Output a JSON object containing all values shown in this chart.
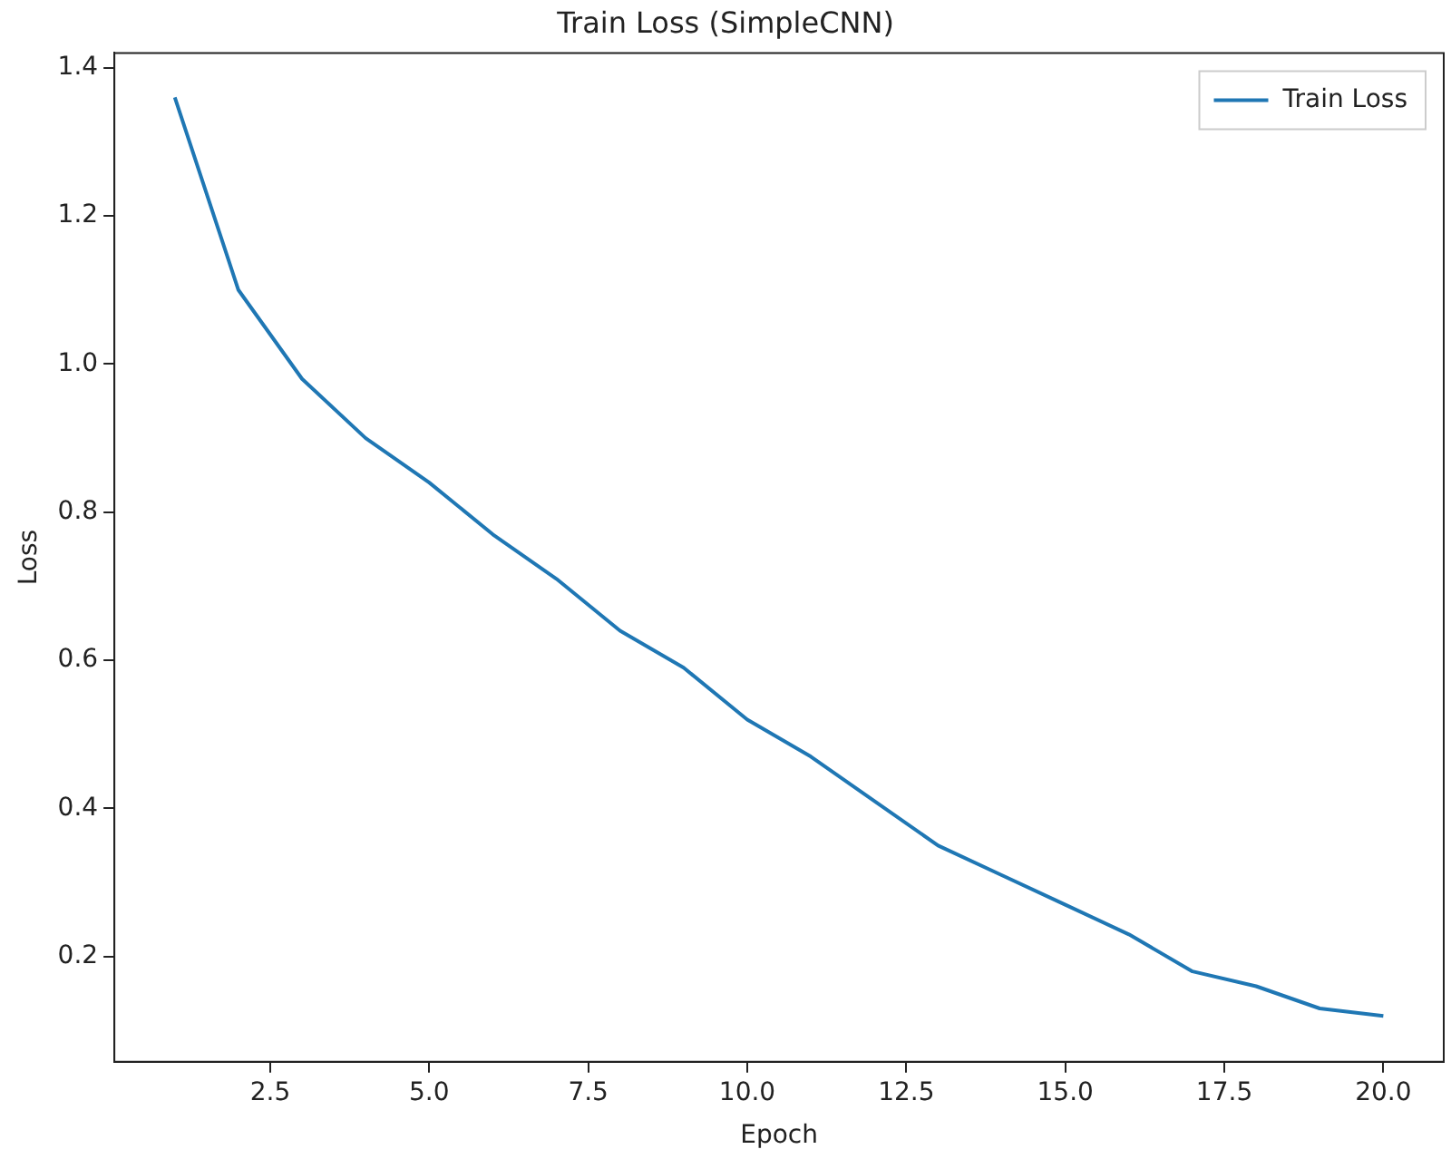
{
  "chart_data": {
    "type": "line",
    "title": "Train Loss (SimpleCNN)",
    "xlabel": "Epoch",
    "ylabel": "Loss",
    "x": [
      1,
      2,
      3,
      4,
      5,
      6,
      7,
      8,
      9,
      10,
      11,
      12,
      13,
      14,
      15,
      16,
      17,
      18,
      19,
      20
    ],
    "series": [
      {
        "name": "Train Loss",
        "color": "#1f77b4",
        "values": [
          1.36,
          1.1,
          0.98,
          0.9,
          0.84,
          0.77,
          0.71,
          0.64,
          0.59,
          0.52,
          0.47,
          0.41,
          0.35,
          0.31,
          0.27,
          0.23,
          0.18,
          0.16,
          0.13,
          0.12
        ]
      }
    ],
    "xlim": [
      0.05,
      20.95
    ],
    "xticks": [
      {
        "value": 2.5,
        "label": "2.5"
      },
      {
        "value": 5,
        "label": "5.0"
      },
      {
        "value": 7.5,
        "label": "7.5"
      },
      {
        "value": 10,
        "label": "10.0"
      },
      {
        "value": 12.5,
        "label": "12.5"
      },
      {
        "value": 15,
        "label": "15.0"
      },
      {
        "value": 17.5,
        "label": "17.5"
      },
      {
        "value": 20,
        "label": "20.0"
      }
    ],
    "ylim": [
      0.058,
      1.42
    ],
    "yticks": [
      {
        "value": 0.2,
        "label": "0.2"
      },
      {
        "value": 0.4,
        "label": "0.4"
      },
      {
        "value": 0.6,
        "label": "0.6"
      },
      {
        "value": 0.8,
        "label": "0.8"
      },
      {
        "value": 1.0,
        "label": "1.0"
      },
      {
        "value": 1.2,
        "label": "1.2"
      },
      {
        "value": 1.4,
        "label": "1.4"
      }
    ],
    "grid": false,
    "legend": "top right",
    "marker": "none",
    "line_style": "solid"
  }
}
